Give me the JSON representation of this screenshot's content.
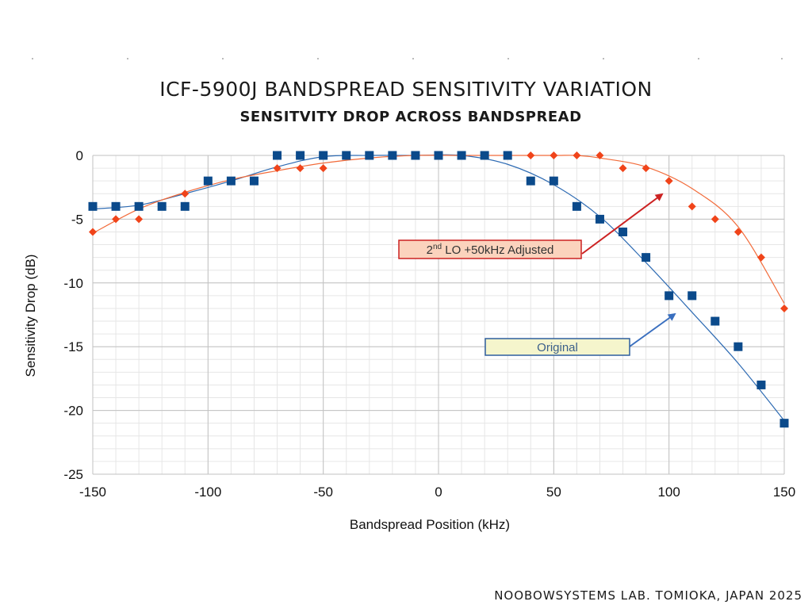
{
  "header": {
    "title": "ICF-5900J BANDSPREAD SENSITIVITY VARIATION",
    "subtitle": "SENSITVITY DROP ACROSS BANDSPREAD"
  },
  "footer": {
    "credit": "NOOBOWSYSTEMS LAB. TOMIOKA, JAPAN 2025"
  },
  "chart_data": {
    "type": "scatter",
    "xlabel": "Bandspread Position (kHz)",
    "ylabel": "Sensitivity Drop (dB)",
    "xlim": [
      -150,
      150
    ],
    "ylim": [
      -25,
      0
    ],
    "x_major_ticks": [
      -150,
      -100,
      -50,
      0,
      50,
      100,
      150
    ],
    "y_major_ticks": [
      0,
      -5,
      -10,
      -15,
      -20,
      -25
    ],
    "x_tick_labels": [
      "-150",
      "-100",
      "-50",
      "0",
      "50",
      "100",
      "150"
    ],
    "y_tick_labels": [
      "0",
      "-5",
      "-10",
      "-15",
      "-20",
      "-25"
    ],
    "grid": true,
    "series": [
      {
        "name": "Original",
        "marker": "square",
        "color": "#0b4a8b",
        "trendline_color": "#2e6bb3",
        "x": [
          -150,
          -140,
          -130,
          -120,
          -110,
          -100,
          -90,
          -80,
          -70,
          -60,
          -50,
          -40,
          -30,
          -20,
          -10,
          0,
          10,
          20,
          30,
          40,
          50,
          60,
          70,
          80,
          90,
          100,
          110,
          120,
          130,
          140,
          150
        ],
        "y": [
          -4,
          -4,
          -4,
          -4,
          -4,
          -2,
          -2,
          -2,
          0,
          0,
          0,
          0,
          0,
          0,
          0,
          0,
          0,
          0,
          0,
          -2,
          -2,
          -4,
          -5,
          -6,
          -8,
          -11,
          -11,
          -13,
          -15,
          -18,
          -21
        ],
        "trendline": {
          "x": [
            -150,
            -130,
            -110,
            -90,
            -70,
            -50,
            -30,
            -10,
            10,
            30,
            50,
            70,
            90,
            110,
            130,
            150
          ],
          "y": [
            -4.2,
            -3.9,
            -3.0,
            -2.0,
            -0.9,
            -0.1,
            0,
            0,
            0,
            -0.7,
            -2.3,
            -4.8,
            -8.4,
            -12.3,
            -16.3,
            -20.8
          ]
        }
      },
      {
        "name": "2nd LO +50kHz Adjusted",
        "marker": "diamond",
        "color": "#f0441a",
        "trendline_color": "#f26b3a",
        "x": [
          -150,
          -140,
          -130,
          -120,
          -110,
          -100,
          -90,
          -80,
          -70,
          -60,
          -50,
          -40,
          -30,
          -20,
          -10,
          0,
          10,
          20,
          30,
          40,
          50,
          60,
          70,
          80,
          90,
          100,
          110,
          120,
          130,
          140,
          150
        ],
        "y": [
          -6,
          -5,
          -5,
          -4,
          -3,
          -2,
          -2,
          -2,
          -1,
          -1,
          -1,
          0,
          0,
          0,
          0,
          0,
          0,
          0,
          0,
          0,
          0,
          0,
          0,
          -1,
          -1,
          -2,
          -4,
          -5,
          -6,
          -8,
          -12
        ],
        "trendline": {
          "x": [
            -150,
            -130,
            -110,
            -90,
            -70,
            -50,
            -30,
            -10,
            10,
            30,
            50,
            60,
            70,
            90,
            110,
            130,
            150
          ],
          "y": [
            -6.1,
            -4.2,
            -2.9,
            -1.9,
            -1.2,
            -0.6,
            -0.2,
            0,
            0,
            0,
            0,
            0,
            -0.2,
            -0.9,
            -2.6,
            -5.6,
            -11.6
          ]
        }
      }
    ],
    "annotations": [
      {
        "text_main": "2",
        "text_sup": "nd",
        "text_rest": " LO +50kHz Adjusted",
        "series": "2nd LO +50kHz Adjusted",
        "fill": "#fbd3bd",
        "border": "#cc2222",
        "arrow_color": "#cc2222"
      },
      {
        "text": "Original",
        "series": "Original",
        "fill": "#f5f5cc",
        "border": "#2f5f9e",
        "arrow_color": "#3a6fbf"
      }
    ]
  }
}
